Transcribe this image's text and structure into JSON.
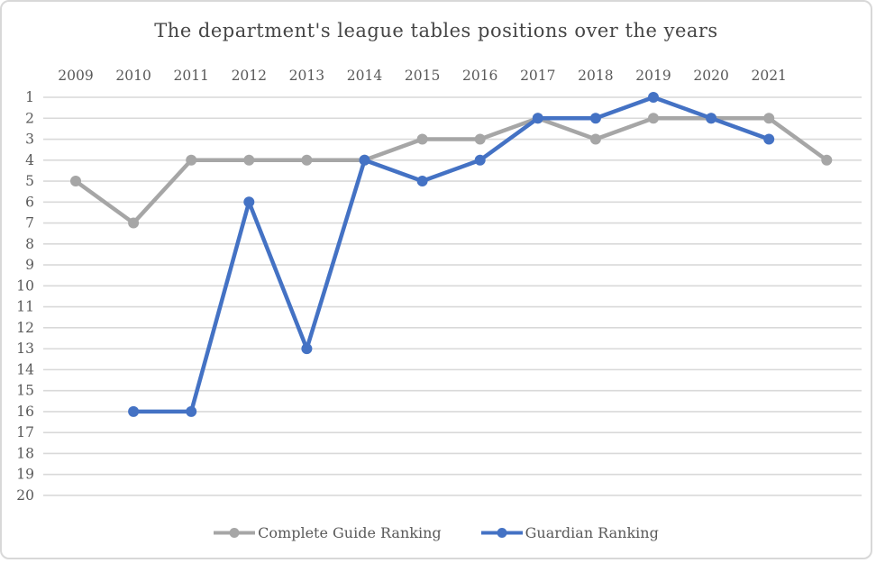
{
  "window": {
    "background": "#ffffff",
    "border_color": "#d8d8d8"
  },
  "chart_data": {
    "type": "line",
    "title": "The department's league tables positions over the years",
    "categories": [
      "2009",
      "2010",
      "2011",
      "2012",
      "2013",
      "2014",
      "2015",
      "2016",
      "2017",
      "2018",
      "2019",
      "2020",
      "2021",
      ""
    ],
    "series": [
      {
        "name": "Complete Guide Ranking",
        "color": "#a6a6a6",
        "values": [
          5,
          7,
          4,
          4,
          4,
          4,
          3,
          3,
          2,
          3,
          2,
          2,
          2,
          4
        ]
      },
      {
        "name": "Guardian Ranking",
        "color": "#4472c4",
        "values": [
          null,
          16,
          16,
          6,
          13,
          4,
          5,
          4,
          2,
          2,
          1,
          2,
          3,
          null
        ]
      }
    ],
    "y_axis": {
      "min": 1,
      "max": 20,
      "step": 1,
      "inverted": true,
      "tick_labels": [
        "1",
        "2",
        "3",
        "4",
        "5",
        "6",
        "7",
        "8",
        "9",
        "10",
        "11",
        "12",
        "13",
        "14",
        "15",
        "16",
        "17",
        "18",
        "19",
        "20"
      ]
    },
    "x_axis": {
      "labels_position": "top"
    },
    "grid": {
      "show": true,
      "color": "#d9d9d9"
    },
    "legend": {
      "position": "bottom"
    },
    "styles": {
      "text_color": "#595959",
      "title_color": "#454545",
      "line_width": 4.5,
      "marker_radius": 6
    }
  }
}
